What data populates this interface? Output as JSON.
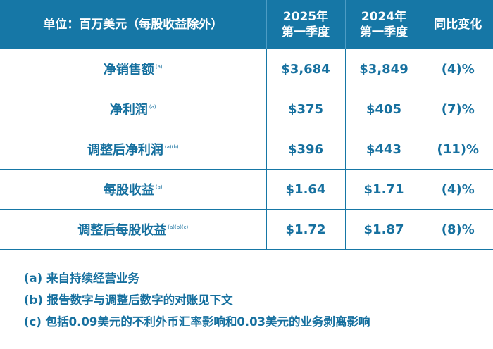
{
  "header": {
    "label": "单位：百万美元（每股收益除外）",
    "col1": [
      "2025年",
      "第一季度"
    ],
    "col2": [
      "2024年",
      "第一季度"
    ],
    "col3": "同比变化"
  },
  "rows": [
    {
      "label": "净销售额",
      "note": "(a)",
      "v2025": "$3,684",
      "v2024": "$3,849",
      "change": "(4)%"
    },
    {
      "label": "净利润",
      "note": "(a)",
      "v2025": "$375",
      "v2024": "$405",
      "change": "(7)%"
    },
    {
      "label": "调整后净利润",
      "note": "(a)(b)",
      "v2025": "$396",
      "v2024": "$443",
      "change": "(11)%"
    },
    {
      "label": "每股收益",
      "note": "(a)",
      "v2025": "$1.64",
      "v2024": "$1.71",
      "change": "(4)%"
    },
    {
      "label": "调整后每股收益",
      "note": "(a)(b)(c)",
      "v2025": "$1.72",
      "v2024": "$1.87",
      "change": "(8)%"
    }
  ],
  "footnotes": [
    "(a) 来自持续经营业务",
    "(b) 报告数字与调整后数字的对账见下文",
    "(c) 包括0.09美元的不利外币汇率影响和0.03美元的业务剥离影响"
  ],
  "colors": {
    "header_bg": "#1677a6",
    "text": "#16709f"
  }
}
